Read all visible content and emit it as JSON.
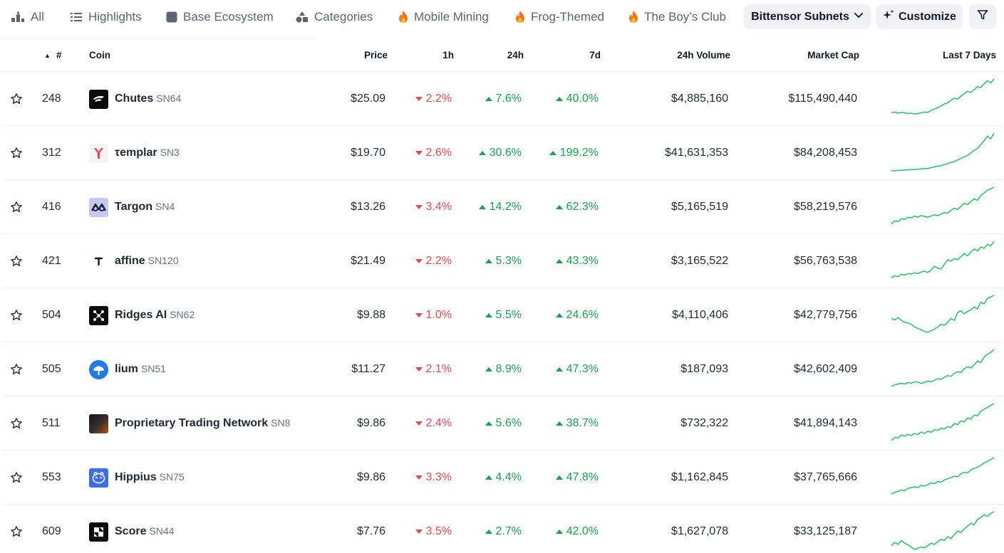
{
  "nav": {
    "tabs": [
      {
        "label": "All",
        "icon": "bar-chart-icon"
      },
      {
        "label": "Highlights",
        "icon": "list-icon"
      },
      {
        "label": "Base Ecosystem",
        "icon": "square-icon"
      },
      {
        "label": "Categories",
        "icon": "shapes-icon"
      },
      {
        "label": "Mobile Mining",
        "icon": "fire-icon"
      },
      {
        "label": "Frog-Themed",
        "icon": "fire-icon"
      },
      {
        "label": "The Boy’s Club",
        "icon": "fire-icon"
      }
    ],
    "dropdown_label": "Bittensor Subnets",
    "customize_label": "Customize",
    "filter_icon": "filter-icon"
  },
  "table": {
    "headers": {
      "rank": "#",
      "coin": "Coin",
      "price": "Price",
      "h1": "1h",
      "h24": "24h",
      "d7": "7d",
      "volume": "24h Volume",
      "market_cap": "Market Cap",
      "last7": "Last 7 Days"
    },
    "sort_indicator": "▲",
    "colors": {
      "up": "#16a34a",
      "down": "#e5484d",
      "sparkline": "#22c55e"
    },
    "rows": [
      {
        "rank": "248",
        "name": "Chutes",
        "symbol": "SN64",
        "price": "$25.09",
        "h1": "2.2%",
        "h1_dir": "down",
        "h24": "7.6%",
        "h24_dir": "up",
        "d7": "40.0%",
        "d7_dir": "up",
        "volume": "$4,885,160",
        "market_cap": "$115,490,440",
        "spark": [
          0.12,
          0.14,
          0.11,
          0.13,
          0.12,
          0.1,
          0.11,
          0.09,
          0.1,
          0.12,
          0.14,
          0.13,
          0.18,
          0.22,
          0.25,
          0.3,
          0.35,
          0.38,
          0.45,
          0.5,
          0.48,
          0.55,
          0.62,
          0.68,
          0.65,
          0.72,
          0.8,
          0.78,
          0.88,
          0.95,
          0.9,
          1.0
        ]
      },
      {
        "rank": "312",
        "name": "τemplar",
        "symbol": "SN3",
        "price": "$19.70",
        "h1": "2.6%",
        "h1_dir": "down",
        "h24": "30.6%",
        "h24_dir": "up",
        "d7": "199.2%",
        "d7_dir": "up",
        "volume": "$41,631,353",
        "market_cap": "$84,208,453",
        "spark": [
          0.02,
          0.02,
          0.03,
          0.03,
          0.04,
          0.04,
          0.05,
          0.05,
          0.06,
          0.07,
          0.08,
          0.08,
          0.1,
          0.12,
          0.14,
          0.15,
          0.18,
          0.2,
          0.24,
          0.26,
          0.3,
          0.34,
          0.38,
          0.42,
          0.48,
          0.55,
          0.6,
          0.7,
          0.8,
          0.92,
          0.85,
          1.0
        ]
      },
      {
        "rank": "416",
        "name": "Targon",
        "symbol": "SN4",
        "price": "$13.26",
        "h1": "3.4%",
        "h1_dir": "down",
        "h24": "14.2%",
        "h24_dir": "up",
        "d7": "62.3%",
        "d7_dir": "up",
        "volume": "$5,165,519",
        "market_cap": "$58,219,576",
        "spark": [
          0.05,
          0.12,
          0.1,
          0.18,
          0.16,
          0.22,
          0.2,
          0.25,
          0.22,
          0.26,
          0.24,
          0.22,
          0.25,
          0.28,
          0.26,
          0.3,
          0.34,
          0.32,
          0.4,
          0.45,
          0.42,
          0.5,
          0.58,
          0.55,
          0.62,
          0.7,
          0.66,
          0.78,
          0.85,
          0.92,
          0.96,
          1.0
        ]
      },
      {
        "rank": "421",
        "name": "affine",
        "symbol": "SN120",
        "price": "$21.49",
        "h1": "2.2%",
        "h1_dir": "down",
        "h24": "5.3%",
        "h24_dir": "up",
        "d7": "43.3%",
        "d7_dir": "up",
        "volume": "$3,165,522",
        "market_cap": "$56,763,538",
        "spark": [
          0.05,
          0.1,
          0.08,
          0.14,
          0.12,
          0.16,
          0.15,
          0.18,
          0.16,
          0.2,
          0.22,
          0.19,
          0.25,
          0.35,
          0.3,
          0.28,
          0.4,
          0.52,
          0.48,
          0.55,
          0.52,
          0.6,
          0.68,
          0.62,
          0.72,
          0.8,
          0.75,
          0.85,
          0.82,
          0.92,
          0.88,
          1.0
        ]
      },
      {
        "rank": "504",
        "name": "Ridges AI",
        "symbol": "SN62",
        "price": "$9.88",
        "h1": "1.0%",
        "h1_dir": "down",
        "h24": "5.5%",
        "h24_dir": "up",
        "d7": "24.6%",
        "d7_dir": "up",
        "volume": "$4,110,406",
        "market_cap": "$42,779,756",
        "spark": [
          0.4,
          0.36,
          0.42,
          0.35,
          0.3,
          0.28,
          0.24,
          0.18,
          0.14,
          0.1,
          0.06,
          0.04,
          0.08,
          0.12,
          0.18,
          0.25,
          0.22,
          0.3,
          0.4,
          0.35,
          0.55,
          0.6,
          0.52,
          0.58,
          0.62,
          0.7,
          0.65,
          0.82,
          0.78,
          0.92,
          0.96,
          1.0
        ]
      },
      {
        "rank": "505",
        "name": "lium",
        "symbol": "SN51",
        "price": "$11.27",
        "h1": "2.1%",
        "h1_dir": "down",
        "h24": "8.9%",
        "h24_dir": "up",
        "d7": "47.3%",
        "d7_dir": "up",
        "volume": "$187,093",
        "market_cap": "$42,602,409",
        "spark": [
          0.04,
          0.08,
          0.1,
          0.12,
          0.1,
          0.14,
          0.12,
          0.16,
          0.15,
          0.12,
          0.14,
          0.18,
          0.16,
          0.2,
          0.24,
          0.22,
          0.28,
          0.32,
          0.3,
          0.38,
          0.42,
          0.4,
          0.5,
          0.55,
          0.52,
          0.6,
          0.7,
          0.66,
          0.8,
          0.88,
          0.92,
          1.0
        ]
      },
      {
        "rank": "511",
        "name": "Proprietary Trading Network",
        "symbol": "SN8",
        "price": "$9.86",
        "h1": "2.4%",
        "h1_dir": "down",
        "h24": "5.6%",
        "h24_dir": "up",
        "d7": "38.7%",
        "d7_dir": "up",
        "volume": "$732,322",
        "market_cap": "$41,894,143",
        "spark": [
          0.04,
          0.12,
          0.1,
          0.18,
          0.15,
          0.2,
          0.17,
          0.22,
          0.2,
          0.26,
          0.22,
          0.28,
          0.25,
          0.32,
          0.3,
          0.36,
          0.34,
          0.4,
          0.38,
          0.48,
          0.45,
          0.55,
          0.52,
          0.62,
          0.6,
          0.7,
          0.68,
          0.8,
          0.85,
          0.9,
          0.95,
          1.0
        ]
      },
      {
        "rank": "553",
        "name": "Hippius",
        "symbol": "SN75",
        "price": "$9.86",
        "h1": "3.3%",
        "h1_dir": "down",
        "h24": "4.4%",
        "h24_dir": "up",
        "d7": "47.8%",
        "d7_dir": "up",
        "volume": "$1,162,845",
        "market_cap": "$37,765,666",
        "spark": [
          0.05,
          0.1,
          0.12,
          0.16,
          0.14,
          0.2,
          0.22,
          0.24,
          0.22,
          0.28,
          0.26,
          0.3,
          0.34,
          0.32,
          0.38,
          0.36,
          0.42,
          0.45,
          0.48,
          0.52,
          0.5,
          0.58,
          0.62,
          0.6,
          0.68,
          0.72,
          0.75,
          0.8,
          0.86,
          0.9,
          0.95,
          1.0
        ]
      },
      {
        "rank": "609",
        "name": "Score",
        "symbol": "SN44",
        "price": "$7.76",
        "h1": "3.5%",
        "h1_dir": "down",
        "h24": "2.7%",
        "h24_dir": "up",
        "d7": "42.0%",
        "d7_dir": "up",
        "volume": "$1,627,078",
        "market_cap": "$33,125,187",
        "spark": [
          0.12,
          0.2,
          0.15,
          0.25,
          0.18,
          0.14,
          0.08,
          0.02,
          0.05,
          0.08,
          0.06,
          0.12,
          0.18,
          0.15,
          0.22,
          0.28,
          0.25,
          0.35,
          0.3,
          0.4,
          0.5,
          0.46,
          0.55,
          0.62,
          0.7,
          0.66,
          0.8,
          0.85,
          0.92,
          0.88,
          0.96,
          1.0
        ]
      }
    ]
  }
}
